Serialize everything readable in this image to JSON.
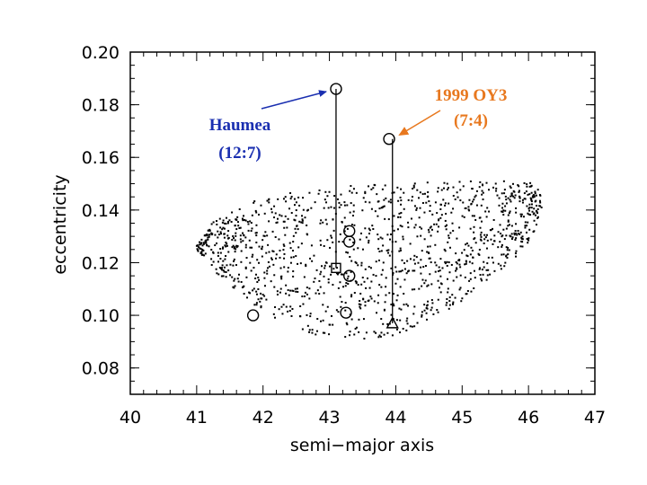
{
  "chart_data": {
    "type": "scatter",
    "xlabel": "semi−major axis",
    "ylabel": "eccentricity",
    "xlim": [
      40,
      47
    ],
    "ylim": [
      0.07,
      0.2
    ],
    "x_ticks": [
      "40",
      "41",
      "42",
      "43",
      "44",
      "45",
      "46",
      "47"
    ],
    "y_ticks": [
      "0.08",
      "0.10",
      "0.12",
      "0.14",
      "0.16",
      "0.18",
      "0.20"
    ],
    "grid": false,
    "series": [
      {
        "name": "",
        "marker": "dot",
        "description_region": "dense field of small dots",
        "envelope_upper": [
          [
            41.0,
            0.128
          ],
          [
            41.3,
            0.137
          ],
          [
            42.0,
            0.145
          ],
          [
            43.0,
            0.149
          ],
          [
            44.0,
            0.15
          ],
          [
            45.0,
            0.151
          ],
          [
            46.0,
            0.151
          ],
          [
            46.2,
            0.147
          ]
        ],
        "envelope_lower": [
          [
            41.0,
            0.125
          ],
          [
            41.3,
            0.116
          ],
          [
            42.0,
            0.101
          ],
          [
            43.0,
            0.09
          ],
          [
            44.0,
            0.092
          ],
          [
            45.0,
            0.105
          ],
          [
            46.0,
            0.126
          ],
          [
            46.2,
            0.14
          ]
        ]
      },
      {
        "name": "",
        "marker": "open-circle",
        "points": [
          [
            43.1,
            0.186
          ],
          [
            43.9,
            0.167
          ],
          [
            43.3,
            0.132
          ],
          [
            43.3,
            0.128
          ],
          [
            43.3,
            0.115
          ],
          [
            43.25,
            0.101
          ],
          [
            41.85,
            0.1
          ]
        ]
      },
      {
        "name": "",
        "marker": "open-square",
        "points": [
          [
            43.1,
            0.118
          ]
        ]
      },
      {
        "name": "",
        "marker": "open-triangle",
        "points": [
          [
            43.95,
            0.097
          ]
        ]
      }
    ],
    "connectors": [
      {
        "from": [
          43.1,
          0.186
        ],
        "to": [
          43.1,
          0.118
        ]
      },
      {
        "from": [
          43.95,
          0.167
        ],
        "to": [
          43.95,
          0.097
        ]
      }
    ],
    "annotations": [
      {
        "line1": "Haumea",
        "line2": "(12:7)",
        "color": "#1a2fb0",
        "target": [
          43.1,
          0.186
        ]
      },
      {
        "line1": "1999 OY3",
        "line2": "(7:4)",
        "color": "#e8781e",
        "target": [
          43.9,
          0.167
        ]
      }
    ]
  }
}
